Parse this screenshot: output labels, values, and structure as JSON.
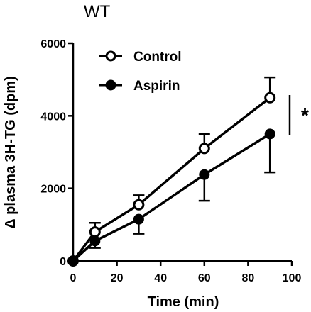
{
  "chart_data": {
    "type": "line",
    "title": "WT",
    "xlabel": "Time (min)",
    "ylabel": "Δ plasma 3H-TG (dpm)",
    "xlim": [
      0,
      100
    ],
    "ylim": [
      0,
      6000
    ],
    "x_ticks": [
      "0",
      "20",
      "40",
      "60",
      "80",
      "100"
    ],
    "y_ticks": [
      "0",
      "2000",
      "4000",
      "6000"
    ],
    "x": [
      0,
      10,
      30,
      60,
      90
    ],
    "series": [
      {
        "name": "Control",
        "marker": "open-circle",
        "values": [
          0,
          800,
          1550,
          3100,
          4500
        ],
        "error": [
          0,
          250,
          260,
          400,
          560
        ]
      },
      {
        "name": "Aspirin",
        "marker": "filled-circle",
        "values": [
          0,
          550,
          1150,
          2380,
          3500
        ],
        "error": [
          0,
          190,
          400,
          720,
          1060
        ]
      }
    ],
    "legend_position": "top-left",
    "annotation": "*",
    "grid": false
  }
}
